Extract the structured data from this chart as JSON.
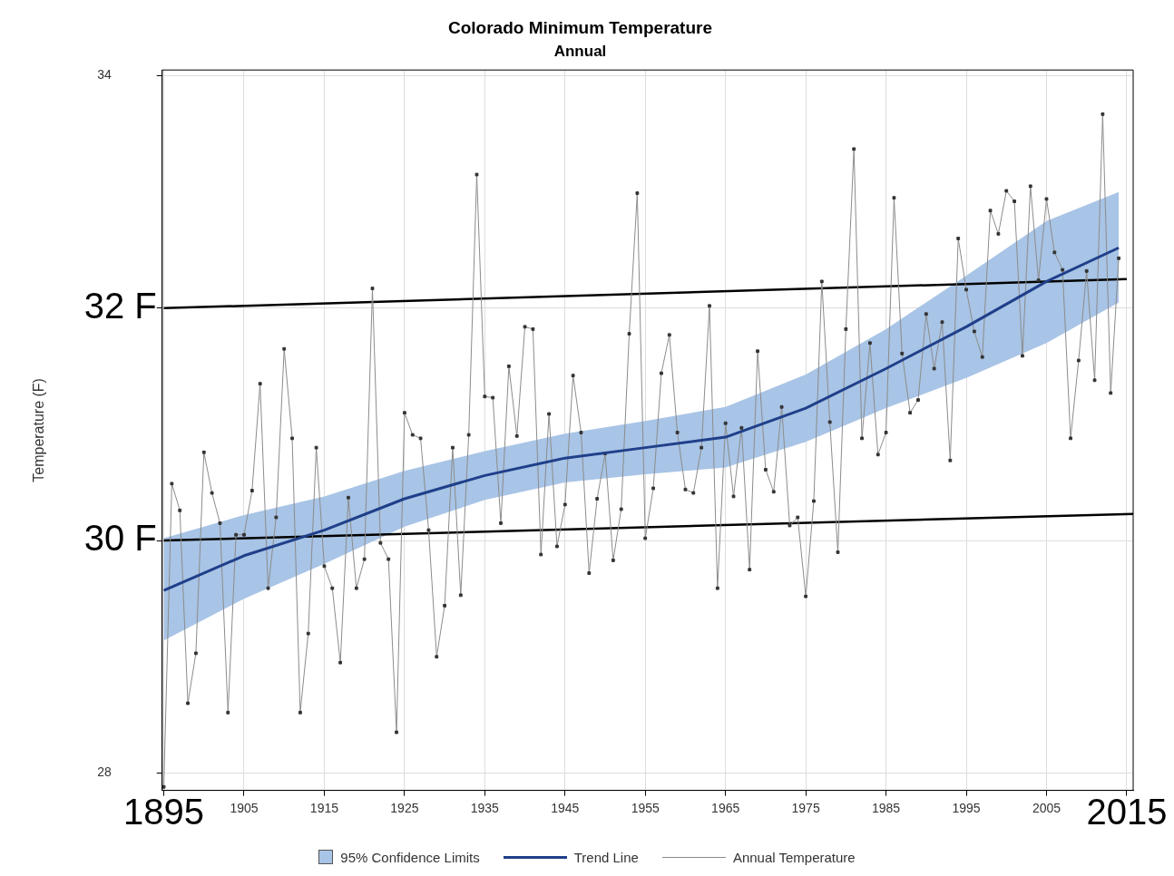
{
  "chart_data": {
    "type": "line",
    "title": "Colorado Minimum Temperature",
    "subtitle": "Annual",
    "ylabel": "Temperature (F)",
    "xlim": [
      1894.8,
      2015.8
    ],
    "xticks": [
      {
        "value": 1895,
        "label": null
      },
      1905,
      1915,
      1925,
      1935,
      1945,
      1955,
      1965,
      1975,
      1985,
      1995,
      2005,
      {
        "value": 2015,
        "label": null
      }
    ],
    "ylim": [
      27.85,
      34.05
    ],
    "yticks": [
      28,
      {
        "value": 30,
        "label": null
      },
      {
        "value": 32,
        "label": null
      },
      34
    ],
    "grid": true,
    "legend": "bottom",
    "series": [
      {
        "type": "line",
        "name": "Trend Line",
        "color": "#1f3f8a",
        "marker": "none",
        "x": [
          1895,
          1905,
          1915,
          1925,
          1935,
          1945,
          1955,
          1965,
          1975,
          1985,
          1995,
          2005,
          2014
        ],
        "values": [
          29.57,
          29.87,
          30.09,
          30.36,
          30.56,
          30.71,
          30.8,
          30.89,
          31.14,
          31.48,
          31.84,
          32.23,
          32.52
        ],
        "lower": [
          29.14,
          29.5,
          29.8,
          30.12,
          30.35,
          30.5,
          30.57,
          30.63,
          30.85,
          31.14,
          31.4,
          31.7,
          32.05
        ],
        "upper": [
          30.02,
          30.22,
          30.38,
          30.6,
          30.77,
          30.92,
          31.03,
          31.15,
          31.43,
          31.82,
          32.28,
          32.75,
          33.0
        ]
      },
      {
        "type": "line",
        "name": "Annual Temperature",
        "color": "#8c8c8c",
        "marker": "square",
        "x": [
          1895,
          1896,
          1897,
          1898,
          1899,
          1900,
          1901,
          1902,
          1903,
          1904,
          1905,
          1906,
          1907,
          1908,
          1909,
          1910,
          1911,
          1912,
          1913,
          1914,
          1915,
          1916,
          1917,
          1918,
          1919,
          1920,
          1921,
          1922,
          1923,
          1924,
          1925,
          1926,
          1927,
          1928,
          1929,
          1930,
          1931,
          1932,
          1933,
          1934,
          1935,
          1936,
          1937,
          1938,
          1939,
          1940,
          1941,
          1942,
          1943,
          1944,
          1945,
          1946,
          1947,
          1948,
          1949,
          1950,
          1951,
          1952,
          1953,
          1954,
          1955,
          1956,
          1957,
          1958,
          1959,
          1960,
          1961,
          1962,
          1963,
          1964,
          1965,
          1966,
          1967,
          1968,
          1969,
          1970,
          1971,
          1972,
          1973,
          1974,
          1975,
          1976,
          1977,
          1978,
          1979,
          1980,
          1981,
          1982,
          1983,
          1984,
          1985,
          1986,
          1987,
          1988,
          1989,
          1990,
          1991,
          1992,
          1993,
          1994,
          1995,
          1996,
          1997,
          1998,
          1999,
          2000,
          2001,
          2002,
          2003,
          2004,
          2005,
          2006,
          2007,
          2008,
          2009,
          2010,
          2011,
          2012,
          2013,
          2014
        ],
        "values": [
          27.88,
          30.49,
          30.26,
          28.6,
          29.03,
          30.76,
          30.41,
          30.15,
          28.52,
          30.05,
          30.05,
          30.43,
          31.35,
          29.59,
          30.2,
          31.65,
          30.88,
          28.52,
          29.2,
          30.8,
          29.78,
          29.59,
          28.95,
          30.37,
          29.59,
          29.84,
          32.17,
          29.98,
          29.84,
          28.35,
          31.1,
          30.91,
          30.88,
          30.09,
          29.0,
          29.44,
          30.8,
          29.53,
          30.91,
          33.15,
          31.24,
          31.23,
          30.15,
          31.5,
          30.9,
          31.84,
          31.82,
          29.88,
          31.09,
          29.95,
          30.31,
          31.42,
          30.93,
          29.72,
          30.36,
          30.75,
          29.83,
          30.27,
          31.78,
          32.99,
          30.02,
          30.45,
          31.44,
          31.77,
          30.93,
          30.44,
          30.41,
          30.8,
          32.02,
          29.59,
          31.01,
          30.38,
          30.97,
          29.75,
          31.63,
          30.61,
          30.42,
          31.15,
          30.13,
          30.2,
          29.52,
          30.34,
          32.23,
          31.02,
          29.9,
          31.82,
          33.37,
          30.88,
          31.7,
          30.74,
          30.93,
          32.95,
          31.61,
          31.1,
          31.21,
          31.95,
          31.48,
          31.88,
          30.69,
          32.6,
          32.16,
          31.8,
          31.58,
          32.84,
          32.64,
          33.01,
          32.92,
          31.59,
          33.05,
          32.24,
          32.94,
          32.48,
          32.33,
          30.88,
          31.55,
          32.32,
          31.38,
          33.67,
          31.27,
          32.43
        ]
      },
      {
        "type": "line",
        "color": "#000000",
        "marker": "none",
        "x": [
          1895,
          2015
        ],
        "values": [
          32.0,
          32.25
        ]
      },
      {
        "type": "line",
        "color": "#000000",
        "marker": "none",
        "x": [
          1895,
          2015.8
        ],
        "values": [
          30.0,
          30.23
        ]
      }
    ],
    "annotations": [
      "95% Confidence Limits",
      "32 F",
      "30 F",
      "1895",
      "2015"
    ]
  }
}
